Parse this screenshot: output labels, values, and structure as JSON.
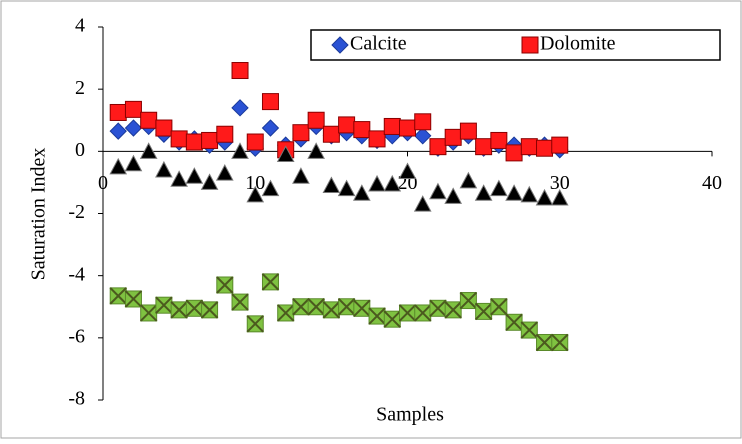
{
  "chart_data": {
    "type": "scatter",
    "x_label": "Samples",
    "y_label": "Saturation Index",
    "x": [
      1,
      2,
      3,
      4,
      5,
      6,
      7,
      8,
      9,
      10,
      11,
      12,
      13,
      14,
      15,
      16,
      17,
      18,
      19,
      20,
      21,
      22,
      23,
      24,
      25,
      26,
      27,
      28,
      29,
      30
    ],
    "series": [
      {
        "name": "Calcite",
        "color": "#2a52d4",
        "marker": "diamond",
        "values": [
          0.65,
          0.75,
          0.8,
          0.55,
          0.3,
          0.4,
          0.2,
          0.3,
          1.4,
          0.1,
          0.75,
          0.2,
          0.4,
          0.8,
          0.5,
          0.6,
          0.5,
          0.35,
          0.5,
          0.6,
          0.5,
          0.1,
          0.3,
          0.5,
          0.1,
          0.2,
          0.2,
          0.1,
          0.2,
          0.05
        ]
      },
      {
        "name": "Dolomite",
        "color": "#ff1a1a",
        "marker": "square",
        "values": [
          1.25,
          1.35,
          1.0,
          0.75,
          0.4,
          0.3,
          0.35,
          0.55,
          2.6,
          0.3,
          1.6,
          0.05,
          0.6,
          1.0,
          0.55,
          0.85,
          0.7,
          0.4,
          0.8,
          0.75,
          0.95,
          0.15,
          0.45,
          0.65,
          0.15,
          0.35,
          -0.05,
          0.15,
          0.1,
          0.2
        ]
      },
      {
        "color": "#000000",
        "marker": "triangle",
        "values": [
          -0.5,
          -0.4,
          0,
          -0.6,
          -0.9,
          -0.8,
          -1.0,
          -0.7,
          0,
          -1.4,
          -1.2,
          -0.1,
          -0.8,
          0,
          -1.1,
          -1.2,
          -1.35,
          -1.05,
          -1.05,
          -0.65,
          -1.7,
          -1.3,
          -1.45,
          -0.95,
          -1.35,
          -1.2,
          -1.35,
          -1.4,
          -1.5,
          -1.5
        ]
      },
      {
        "color": "#7fc241",
        "marker": "square-x",
        "values": [
          -4.65,
          -4.75,
          -5.2,
          -4.95,
          -5.1,
          -5.05,
          -5.1,
          -4.3,
          -4.85,
          -5.55,
          -4.2,
          -5.2,
          -5.0,
          -5.0,
          -5.1,
          -5.0,
          -5.05,
          -5.3,
          -5.4,
          -5.2,
          -5.2,
          -5.05,
          -5.1,
          -4.8,
          -5.15,
          -5.0,
          -5.5,
          -5.75,
          -6.15,
          -6.15
        ]
      }
    ],
    "xlim": [
      0,
      40
    ],
    "xticks": [
      0,
      10,
      20,
      30,
      40
    ],
    "ylim": [
      -8,
      4
    ],
    "yticks": [
      -8,
      -6,
      -4,
      -2,
      0,
      2,
      4
    ],
    "grid": false,
    "legend": "top-right"
  }
}
